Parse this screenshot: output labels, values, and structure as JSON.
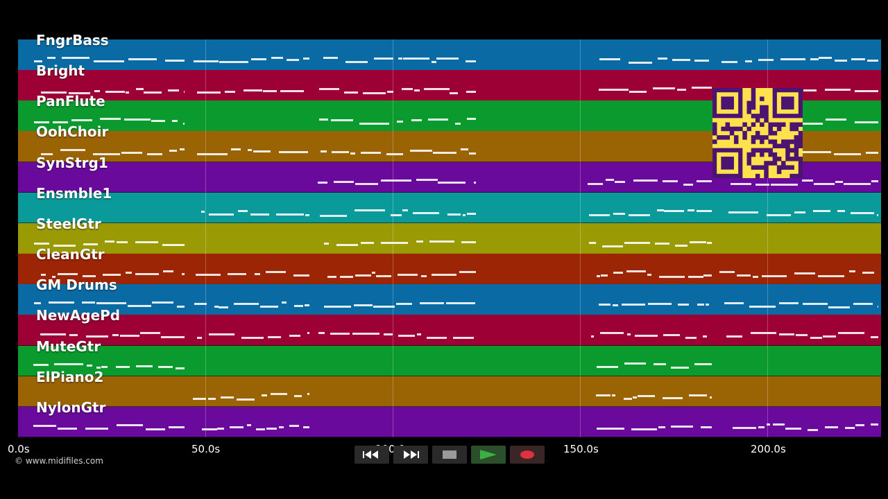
{
  "tracks": [
    {
      "name": "FngrBass",
      "color": "#0a6aa3"
    },
    {
      "name": "Bright",
      "color": "#9c0034"
    },
    {
      "name": "PanFlute",
      "color": "#0a9a2e"
    },
    {
      "name": "OohChoir",
      "color": "#9a6405"
    },
    {
      "name": "SynStrg1",
      "color": "#6a0a9c"
    },
    {
      "name": "Ensmble1",
      "color": "#0a9a9a"
    },
    {
      "name": "SteelGtr",
      "color": "#9a9a05"
    },
    {
      "name": "CleanGtr",
      "color": "#9c2505"
    },
    {
      "name": "GM Drums",
      "color": "#0a6aa3"
    },
    {
      "name": "NewAgePd",
      "color": "#9c0034"
    },
    {
      "name": "MuteGtr",
      "color": "#0a9a2e"
    },
    {
      "name": "ElPiano2",
      "color": "#9a6405"
    },
    {
      "name": "NylonGtr",
      "color": "#6a0a9c"
    }
  ],
  "timeline": {
    "ticks": [
      "0.0s",
      "50.0s",
      "100.0s",
      "150.0s",
      "200.0s"
    ],
    "gridline_color": "#ffffff"
  },
  "transport": {
    "rewind_icon": "rewind-icon",
    "fast_forward_icon": "fast-forward-icon",
    "stop_icon": "stop-icon",
    "play_icon": "play-icon",
    "record_icon": "record-icon",
    "play_color": "#3cb043",
    "record_color": "#e0323c"
  },
  "watermark": {
    "text": "© www.midifiles.com"
  },
  "qr": {
    "color_fg": "#4a1470",
    "color_bg": "#ffe14d"
  }
}
